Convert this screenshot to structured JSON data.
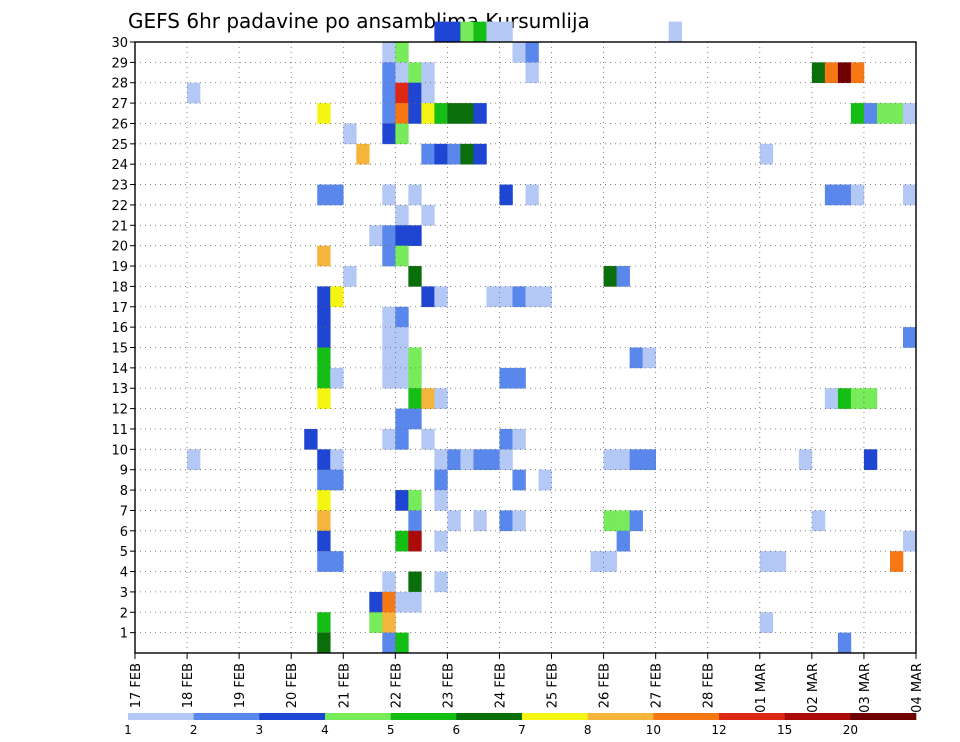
{
  "chart_data": {
    "type": "heatmap",
    "title": "GEFS 6hr padavine po ansamblima Kursumlija",
    "xlabel": "",
    "ylabel": "",
    "x_ticks": [
      "17 FEB",
      "18 FEB",
      "19 FEB",
      "20 FEB",
      "21 FEB",
      "22 FEB",
      "23 FEB",
      "24 FEB",
      "25 FEB",
      "26 FEB",
      "27 FEB",
      "28 FEB",
      "01 MAR",
      "02 MAR",
      "03 MAR",
      "04 MAR"
    ],
    "y_ticks": [
      1,
      2,
      3,
      4,
      5,
      6,
      7,
      8,
      9,
      10,
      11,
      12,
      13,
      14,
      15,
      16,
      17,
      18,
      19,
      20,
      21,
      22,
      23,
      24,
      25,
      26,
      27,
      28,
      29,
      30
    ],
    "xlim": [
      0,
      60
    ],
    "ylim": [
      0,
      30
    ],
    "steps_per_day": 4,
    "grid": true,
    "legend": "bottom",
    "colorbar": {
      "labels": [
        "1",
        "2",
        "3",
        "4",
        "5",
        "6",
        "7",
        "8",
        "10",
        "12",
        "15",
        "20"
      ],
      "colors": [
        "#b4c8f5",
        "#5a87eb",
        "#1e46d2",
        "#78eb5a",
        "#14be14",
        "#0a6e0a",
        "#f5f514",
        "#f5b43c",
        "#f57814",
        "#dc2814",
        "#aa0a0a",
        "#6e0000"
      ]
    },
    "cells": [
      [
        23,
        30,
        2
      ],
      [
        24,
        30,
        2
      ],
      [
        25,
        30,
        3
      ],
      [
        26,
        30,
        4
      ],
      [
        27,
        30,
        0
      ],
      [
        28,
        30,
        0
      ],
      [
        41,
        30,
        0
      ],
      [
        19,
        29,
        0
      ],
      [
        20,
        29,
        3
      ],
      [
        29,
        29,
        0
      ],
      [
        30,
        29,
        1
      ],
      [
        19,
        28,
        1
      ],
      [
        20,
        28,
        0
      ],
      [
        21,
        28,
        3
      ],
      [
        22,
        28,
        0
      ],
      [
        30,
        28,
        0
      ],
      [
        52,
        28,
        5
      ],
      [
        53,
        28,
        8
      ],
      [
        54,
        28,
        11
      ],
      [
        55,
        28,
        8
      ],
      [
        4,
        27,
        0
      ],
      [
        19,
        27,
        1
      ],
      [
        20,
        27,
        9
      ],
      [
        21,
        27,
        2
      ],
      [
        22,
        27,
        0
      ],
      [
        14,
        26,
        6
      ],
      [
        19,
        26,
        1
      ],
      [
        20,
        26,
        8
      ],
      [
        21,
        26,
        2
      ],
      [
        22,
        26,
        6
      ],
      [
        23,
        26,
        4
      ],
      [
        24,
        26,
        5
      ],
      [
        25,
        26,
        5
      ],
      [
        26,
        26,
        2
      ],
      [
        55,
        26,
        4
      ],
      [
        56,
        26,
        1
      ],
      [
        57,
        26,
        3
      ],
      [
        58,
        26,
        3
      ],
      [
        59,
        26,
        0
      ],
      [
        16,
        25,
        0
      ],
      [
        19,
        25,
        2
      ],
      [
        20,
        25,
        3
      ],
      [
        17,
        24,
        7
      ],
      [
        22,
        24,
        1
      ],
      [
        23,
        24,
        2
      ],
      [
        24,
        24,
        1
      ],
      [
        25,
        24,
        5
      ],
      [
        26,
        24,
        2
      ],
      [
        48,
        24,
        0
      ],
      [
        14,
        22,
        1
      ],
      [
        15,
        22,
        1
      ],
      [
        19,
        22,
        0
      ],
      [
        21,
        22,
        0
      ],
      [
        28,
        22,
        2
      ],
      [
        30,
        22,
        0
      ],
      [
        53,
        22,
        1
      ],
      [
        54,
        22,
        1
      ],
      [
        55,
        22,
        0
      ],
      [
        59,
        22,
        0
      ],
      [
        20,
        21,
        0
      ],
      [
        22,
        21,
        0
      ],
      [
        18,
        20,
        0
      ],
      [
        19,
        20,
        1
      ],
      [
        20,
        20,
        2
      ],
      [
        21,
        20,
        2
      ],
      [
        19,
        19,
        1
      ],
      [
        20,
        19,
        3
      ],
      [
        14,
        19,
        7
      ],
      [
        16,
        18,
        0
      ],
      [
        21,
        18,
        5
      ],
      [
        36,
        18,
        5
      ],
      [
        37,
        18,
        1
      ],
      [
        14,
        17,
        2
      ],
      [
        15,
        17,
        6
      ],
      [
        22,
        17,
        2
      ],
      [
        23,
        17,
        0
      ],
      [
        27,
        17,
        0
      ],
      [
        28,
        17,
        0
      ],
      [
        29,
        17,
        1
      ],
      [
        30,
        17,
        0
      ],
      [
        31,
        17,
        0
      ],
      [
        14,
        16,
        2
      ],
      [
        19,
        16,
        0
      ],
      [
        20,
        16,
        1
      ],
      [
        14,
        15,
        2
      ],
      [
        19,
        15,
        0
      ],
      [
        20,
        15,
        0
      ],
      [
        59,
        15,
        1
      ],
      [
        14,
        14,
        4
      ],
      [
        19,
        14,
        0
      ],
      [
        20,
        14,
        0
      ],
      [
        21,
        14,
        3
      ],
      [
        38,
        14,
        1
      ],
      [
        39,
        14,
        0
      ],
      [
        14,
        13,
        4
      ],
      [
        15,
        13,
        0
      ],
      [
        19,
        13,
        0
      ],
      [
        20,
        13,
        0
      ],
      [
        21,
        13,
        3
      ],
      [
        28,
        13,
        1
      ],
      [
        29,
        13,
        1
      ],
      [
        14,
        12,
        6
      ],
      [
        21,
        12,
        4
      ],
      [
        22,
        12,
        7
      ],
      [
        23,
        12,
        0
      ],
      [
        53,
        12,
        0
      ],
      [
        54,
        12,
        4
      ],
      [
        55,
        12,
        3
      ],
      [
        56,
        12,
        3
      ],
      [
        20,
        11,
        1
      ],
      [
        21,
        11,
        1
      ],
      [
        13,
        10,
        2
      ],
      [
        19,
        10,
        0
      ],
      [
        20,
        10,
        1
      ],
      [
        22,
        10,
        0
      ],
      [
        28,
        10,
        1
      ],
      [
        29,
        10,
        0
      ],
      [
        4,
        9,
        0
      ],
      [
        14,
        9,
        2
      ],
      [
        15,
        9,
        0
      ],
      [
        23,
        9,
        0
      ],
      [
        24,
        9,
        1
      ],
      [
        25,
        9,
        0
      ],
      [
        26,
        9,
        1
      ],
      [
        27,
        9,
        1
      ],
      [
        28,
        9,
        0
      ],
      [
        36,
        9,
        0
      ],
      [
        37,
        9,
        0
      ],
      [
        38,
        9,
        1
      ],
      [
        39,
        9,
        1
      ],
      [
        51,
        9,
        0
      ],
      [
        56,
        9,
        2
      ],
      [
        14,
        8,
        1
      ],
      [
        15,
        8,
        1
      ],
      [
        23,
        8,
        1
      ],
      [
        29,
        8,
        1
      ],
      [
        31,
        8,
        0
      ],
      [
        14,
        7,
        6
      ],
      [
        20,
        7,
        2
      ],
      [
        21,
        7,
        3
      ],
      [
        23,
        7,
        0
      ],
      [
        14,
        6,
        7
      ],
      [
        21,
        6,
        1
      ],
      [
        24,
        6,
        0
      ],
      [
        26,
        6,
        0
      ],
      [
        28,
        6,
        1
      ],
      [
        29,
        6,
        0
      ],
      [
        36,
        6,
        3
      ],
      [
        37,
        6,
        3
      ],
      [
        38,
        6,
        1
      ],
      [
        52,
        6,
        0
      ],
      [
        14,
        5,
        2
      ],
      [
        20,
        5,
        4
      ],
      [
        21,
        5,
        10
      ],
      [
        23,
        5,
        0
      ],
      [
        37,
        5,
        1
      ],
      [
        59,
        5,
        0
      ],
      [
        14,
        4,
        1
      ],
      [
        15,
        4,
        1
      ],
      [
        35,
        4,
        0
      ],
      [
        36,
        4,
        0
      ],
      [
        48,
        4,
        0
      ],
      [
        49,
        4,
        0
      ],
      [
        58,
        4,
        8
      ],
      [
        19,
        3,
        0
      ],
      [
        21,
        3,
        5
      ],
      [
        23,
        3,
        0
      ],
      [
        18,
        2,
        2
      ],
      [
        19,
        2,
        8
      ],
      [
        20,
        2,
        0
      ],
      [
        21,
        2,
        0
      ],
      [
        14,
        1,
        4
      ],
      [
        18,
        1,
        3
      ],
      [
        19,
        1,
        7
      ],
      [
        48,
        1,
        0
      ],
      [
        14,
        0,
        5
      ],
      [
        19,
        0,
        1
      ],
      [
        20,
        0,
        4
      ],
      [
        54,
        0,
        1
      ]
    ]
  }
}
